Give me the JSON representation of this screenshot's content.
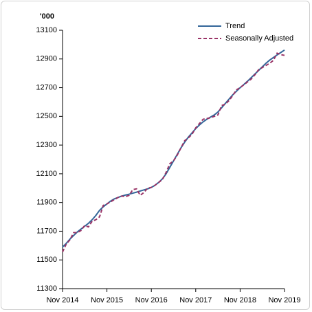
{
  "chart_data": {
    "type": "line",
    "y_label": "'000",
    "categories": [
      "Nov 2014",
      null,
      null,
      null,
      null,
      null,
      null,
      null,
      null,
      null,
      null,
      null,
      "Nov 2015",
      null,
      null,
      null,
      null,
      null,
      null,
      null,
      null,
      null,
      null,
      null,
      "Nov 2016",
      null,
      null,
      null,
      null,
      null,
      null,
      null,
      null,
      null,
      null,
      null,
      "Nov 2017",
      null,
      null,
      null,
      null,
      null,
      null,
      null,
      null,
      null,
      null,
      null,
      "Nov 2018",
      null,
      null,
      null,
      null,
      null,
      null,
      null,
      null,
      null,
      null,
      null,
      "Nov 2019"
    ],
    "series": [
      {
        "name": "Trend",
        "color": "#336699",
        "dashed": false,
        "values": [
          11590,
          11615,
          11645,
          11670,
          11695,
          11715,
          11735,
          11755,
          11780,
          11810,
          11845,
          11870,
          11890,
          11910,
          11925,
          11935,
          11945,
          11952,
          11958,
          11965,
          11972,
          11980,
          11988,
          11995,
          12005,
          12020,
          12040,
          12065,
          12100,
          12145,
          12190,
          12235,
          12280,
          12320,
          12355,
          12385,
          12415,
          12440,
          12462,
          12480,
          12495,
          12510,
          12530,
          12560,
          12590,
          12620,
          12650,
          12675,
          12700,
          12722,
          12745,
          12770,
          12795,
          12820,
          12845,
          12870,
          12892,
          12910,
          12928,
          12945,
          12962
        ]
      },
      {
        "name": "Seasonally Adjusted",
        "color": "#993366",
        "dashed": true,
        "values": [
          11555,
          11610,
          11640,
          11690,
          11690,
          11705,
          11740,
          11730,
          11770,
          11780,
          11800,
          11880,
          11890,
          11905,
          11920,
          11935,
          11945,
          11940,
          11950,
          11990,
          11995,
          11950,
          11970,
          12000,
          12005,
          12020,
          12040,
          12060,
          12110,
          12170,
          12190,
          12230,
          12280,
          12330,
          12350,
          12375,
          12420,
          12450,
          12480,
          12485,
          12490,
          12500,
          12510,
          12575,
          12585,
          12610,
          12645,
          12685,
          12700,
          12720,
          12740,
          12760,
          12790,
          12825,
          12840,
          12855,
          12870,
          12890,
          12940,
          12930,
          12925
        ]
      }
    ],
    "ylim": [
      11300,
      13100
    ],
    "yticks": [
      11300,
      11500,
      11700,
      11900,
      12100,
      12300,
      12500,
      12700,
      12900,
      13100
    ],
    "legend": "top-right"
  }
}
